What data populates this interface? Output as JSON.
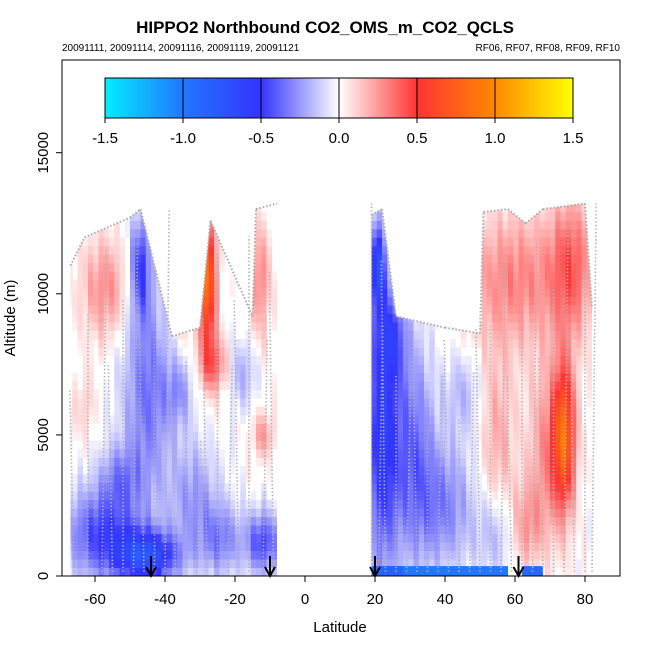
{
  "chart_data": {
    "type": "heatmap",
    "title": "HIPPO2 Northbound CO2_OMS_m_CO2_QCLS",
    "subtitle_left": "20091111, 20091114, 20091116, 20091119, 20091121",
    "subtitle_right": "RF06, RF07, RF08, RF09, RF10",
    "xlabel": "Latitude",
    "ylabel": "Altitude (m)",
    "xlim": [
      -70,
      90
    ],
    "ylim": [
      0,
      18000
    ],
    "x_ticks": [
      -60,
      -40,
      -20,
      0,
      20,
      40,
      60,
      80
    ],
    "x_tick_labels": [
      "-60",
      "-40",
      "-20",
      "0",
      "20",
      "40",
      "60",
      "80"
    ],
    "y_ticks": [
      0,
      5000,
      10000,
      15000
    ],
    "y_tick_labels": [
      "0",
      "5000",
      "10000",
      "15000"
    ],
    "colorbar": {
      "min": -1.5,
      "max": 1.5,
      "ticks": [
        -1.5,
        -1.0,
        -0.5,
        0.0,
        0.5,
        1.0,
        1.5
      ],
      "tick_labels": [
        "-1.5",
        "-1.0",
        "-0.5",
        "0.0",
        "0.5",
        "1.0",
        "1.5"
      ],
      "colors": [
        "#00eeff",
        "#2277ff",
        "#3333ff",
        "#ffffff",
        "#ff3333",
        "#ff8800",
        "#ffff00"
      ]
    },
    "arrow_latitudes": [
      -44,
      -10,
      20,
      61
    ],
    "tops": [
      {
        "lat": -67,
        "alt": 11000
      },
      {
        "lat": -63,
        "alt": 12000
      },
      {
        "lat": -50,
        "alt": 12700
      },
      {
        "lat": -47,
        "alt": 13000
      },
      {
        "lat": -38,
        "alt": 8500
      },
      {
        "lat": -30,
        "alt": 8800
      },
      {
        "lat": -27,
        "alt": 12600
      },
      {
        "lat": -15,
        "alt": 9200
      },
      {
        "lat": -14,
        "alt": 13000
      },
      {
        "lat": -8,
        "alt": 13200
      },
      {
        "lat": 19,
        "alt": 12800
      },
      {
        "lat": 22,
        "alt": 13000
      },
      {
        "lat": 26,
        "alt": 9200
      },
      {
        "lat": 40,
        "alt": 8800
      },
      {
        "lat": 50,
        "alt": 8600
      },
      {
        "lat": 51,
        "alt": 12900
      },
      {
        "lat": 58,
        "alt": 13000
      },
      {
        "lat": 63,
        "alt": 12500
      },
      {
        "lat": 68,
        "alt": 13000
      },
      {
        "lat": 80,
        "alt": 13200
      },
      {
        "lat": 82,
        "alt": 9500
      }
    ],
    "blobs": [
      {
        "lat": -58,
        "alt": 1500,
        "rlat": 11,
        "ralt": 1600,
        "v": -0.45
      },
      {
        "lat": -45,
        "alt": 700,
        "rlat": 9,
        "ralt": 900,
        "v": -0.65
      },
      {
        "lat": -45,
        "alt": 6500,
        "rlat": 7,
        "ralt": 3800,
        "v": -0.35
      },
      {
        "lat": -47,
        "alt": 11000,
        "rlat": 3,
        "ralt": 1800,
        "v": -0.45
      },
      {
        "lat": -53,
        "alt": 3500,
        "rlat": 6,
        "ralt": 1200,
        "v": -0.25
      },
      {
        "lat": -32,
        "alt": 2800,
        "rlat": 7,
        "ralt": 2000,
        "v": -0.25
      },
      {
        "lat": -24,
        "alt": 1300,
        "rlat": 6,
        "ralt": 1300,
        "v": -0.3
      },
      {
        "lat": -12,
        "alt": 1200,
        "rlat": 5,
        "ralt": 1100,
        "v": -0.45
      },
      {
        "lat": -36,
        "alt": 6500,
        "rlat": 4,
        "ralt": 1200,
        "v": -0.22
      },
      {
        "lat": -18,
        "alt": 7200,
        "rlat": 4,
        "ralt": 1200,
        "v": -0.2
      },
      {
        "lat": 22,
        "alt": 5000,
        "rlat": 5,
        "ralt": 5000,
        "v": -0.55
      },
      {
        "lat": 21,
        "alt": 11000,
        "rlat": 2,
        "ralt": 1600,
        "v": -0.6
      },
      {
        "lat": 31,
        "alt": 4500,
        "rlat": 6,
        "ralt": 4000,
        "v": -0.35
      },
      {
        "lat": 25,
        "alt": 8500,
        "rlat": 4,
        "ralt": 1500,
        "v": -0.3
      },
      {
        "lat": 40,
        "alt": 2500,
        "rlat": 8,
        "ralt": 2200,
        "v": -0.3
      },
      {
        "lat": 45,
        "alt": 6500,
        "rlat": 5,
        "ralt": 1500,
        "v": -0.18
      },
      {
        "lat": 55,
        "alt": 1500,
        "rlat": 6,
        "ralt": 1500,
        "v": -0.2
      },
      {
        "lat": 60,
        "alt": 10500,
        "rlat": 15,
        "ralt": 2400,
        "v": 0.3
      },
      {
        "lat": 76,
        "alt": 11000,
        "rlat": 6,
        "ralt": 2500,
        "v": 0.35
      },
      {
        "lat": 74,
        "alt": 5000,
        "rlat": 3,
        "ralt": 2500,
        "v": 0.7
      },
      {
        "lat": 70,
        "alt": 4500,
        "rlat": 6,
        "ralt": 3000,
        "v": 0.3
      },
      {
        "lat": 55,
        "alt": 5000,
        "rlat": 5,
        "ralt": 3000,
        "v": 0.2
      },
      {
        "lat": 63,
        "alt": 1800,
        "rlat": 5,
        "ralt": 1500,
        "v": 0.25
      },
      {
        "lat": -57,
        "alt": 10200,
        "rlat": 7,
        "ralt": 1800,
        "v": 0.28
      },
      {
        "lat": -28,
        "alt": 10500,
        "rlat": 2.5,
        "ralt": 2400,
        "v": 0.85
      },
      {
        "lat": -26,
        "alt": 7500,
        "rlat": 4,
        "ralt": 1000,
        "v": 0.35
      },
      {
        "lat": -13,
        "alt": 10500,
        "rlat": 3,
        "ralt": 2000,
        "v": 0.3
      },
      {
        "lat": -12,
        "alt": 5000,
        "rlat": 3,
        "ralt": 800,
        "v": 0.25
      },
      {
        "lat": -63,
        "alt": 6000,
        "rlat": 3,
        "ralt": 1200,
        "v": 0.12
      },
      {
        "lat": -35,
        "alt": 9000,
        "rlat": 3,
        "ralt": 1000,
        "v": 0.12
      }
    ],
    "surface_strip": [
      {
        "lat1": 18,
        "lat2": 58,
        "v": -1.0
      },
      {
        "lat1": 19,
        "lat2": 28,
        "v": -0.85
      },
      {
        "lat1": 62,
        "lat2": 68,
        "v": -0.9
      }
    ]
  }
}
